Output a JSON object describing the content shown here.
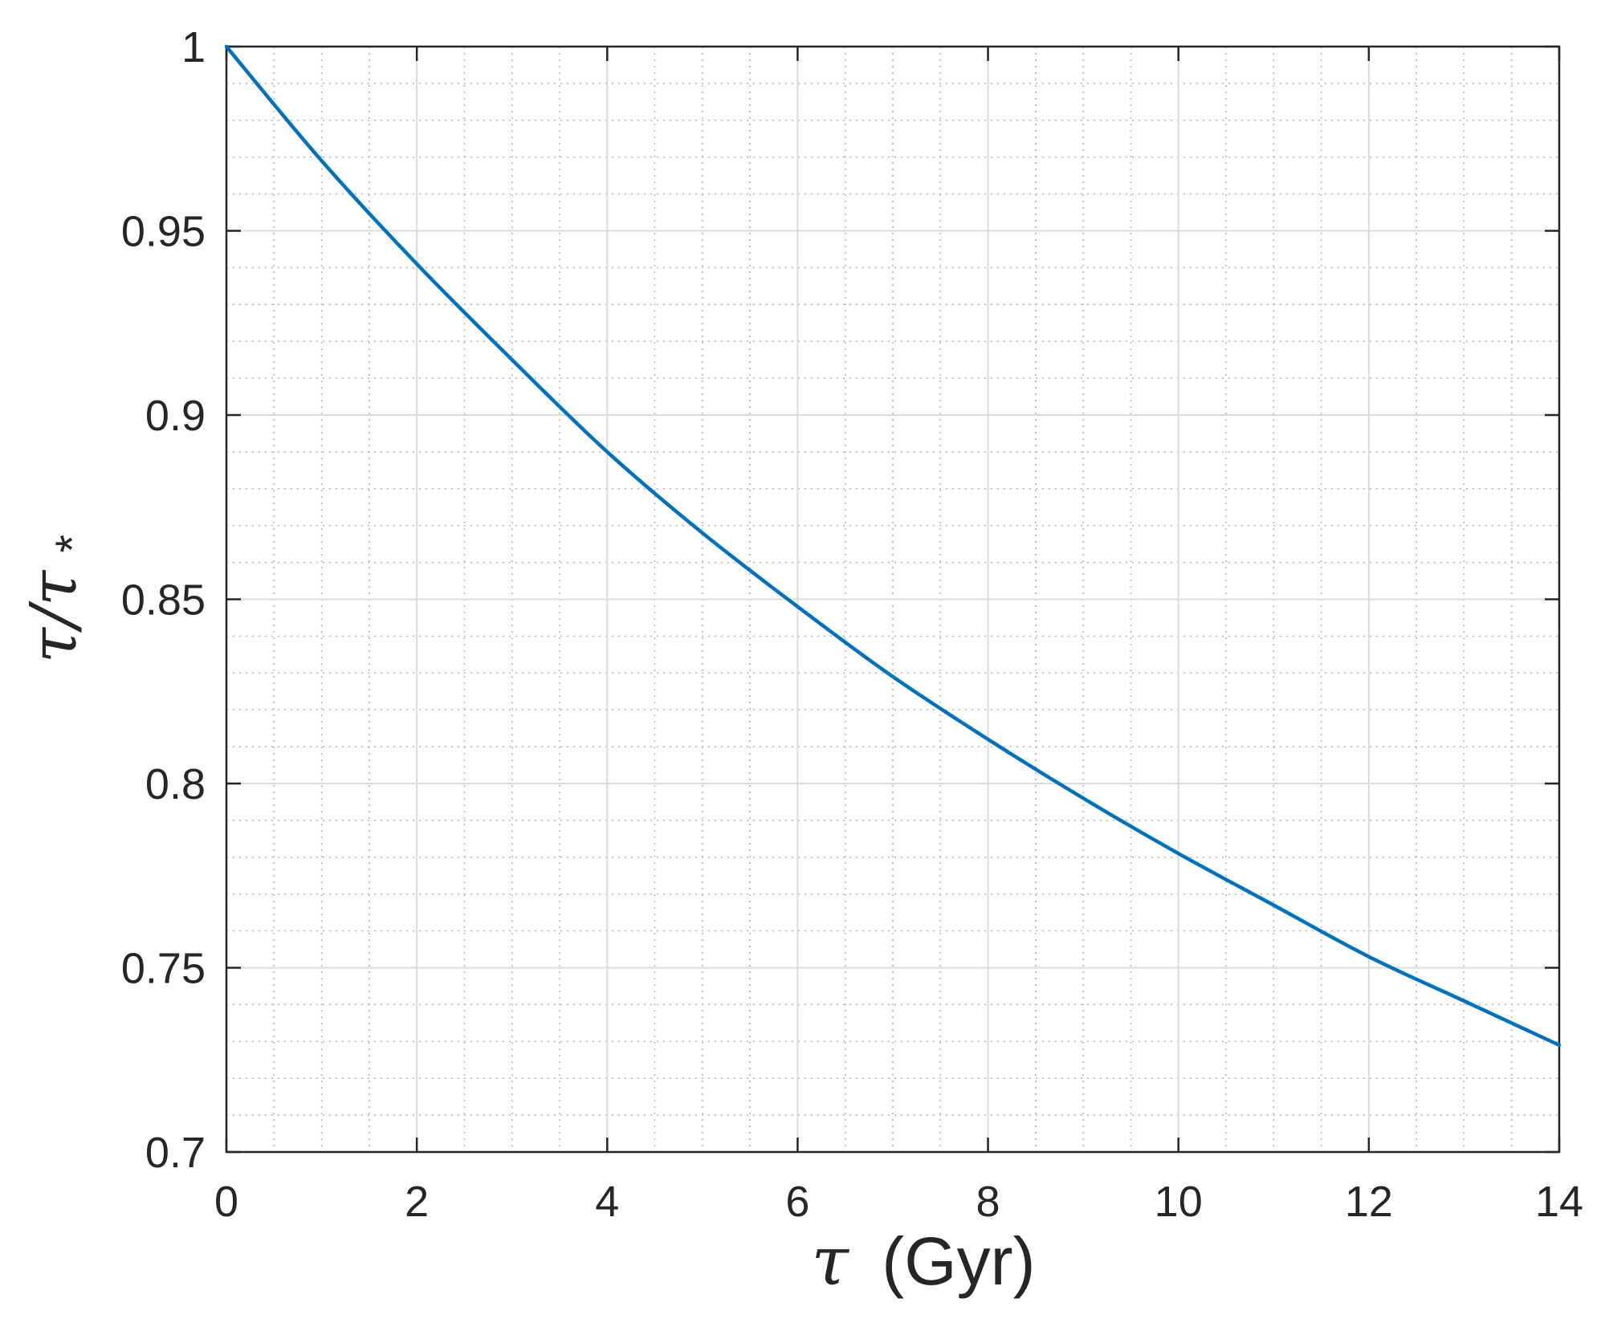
{
  "chart_data": {
    "type": "line",
    "title": "",
    "xlabel": {
      "symbol": "τ",
      "text": "(Gyr)"
    },
    "ylabel": {
      "symbol": "τ/τ",
      "subscript": "*"
    },
    "xlim": [
      0,
      14
    ],
    "ylim": [
      0.7,
      1
    ],
    "xticks": [
      0,
      2,
      4,
      6,
      8,
      10,
      12,
      14
    ],
    "yticks": [
      0.7,
      0.75,
      0.8,
      0.85,
      0.9,
      0.95,
      1
    ],
    "xtick_labels": [
      "0",
      "2",
      "4",
      "6",
      "8",
      "10",
      "12",
      "14"
    ],
    "ytick_labels": [
      "0.7",
      "0.75",
      "0.8",
      "0.85",
      "0.9",
      "0.95",
      "1"
    ],
    "grid": {
      "major": true,
      "minor": true
    },
    "legend": "none",
    "series": [
      {
        "color": "#0072bd",
        "x": [
          0,
          1,
          2,
          3,
          4,
          5,
          6,
          7,
          8,
          9,
          10,
          11,
          12,
          13,
          14
        ],
        "y": [
          1.0,
          0.969,
          0.941,
          0.915,
          0.89,
          0.868,
          0.848,
          0.829,
          0.812,
          0.796,
          0.781,
          0.767,
          0.753,
          0.741,
          0.729
        ]
      }
    ]
  }
}
